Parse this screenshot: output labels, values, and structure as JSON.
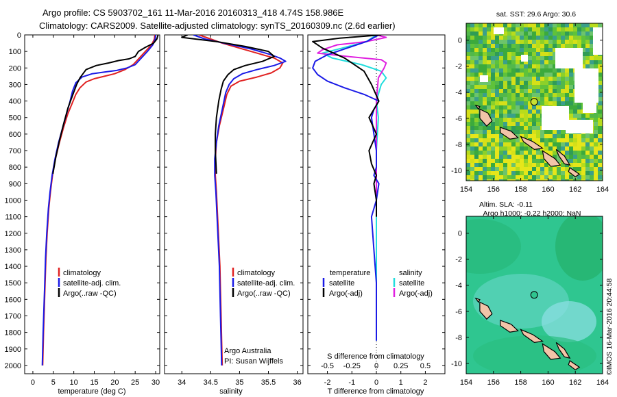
{
  "header": {
    "line1": "Argo profile: CS 5903702_161 11-Mar-2016 20160313_418 4.74S 158.986E",
    "line2": "Climatology: CARS2009. Satellite-adjusted climatology: synTS_20160309.nc (2.6d earlier)"
  },
  "depth_ticks": [
    "0",
    "100",
    "200",
    "300",
    "400",
    "500",
    "600",
    "700",
    "800",
    "900",
    "1000",
    "1100",
    "1200",
    "1300",
    "1400",
    "1500",
    "1600",
    "1700",
    "1800",
    "1900",
    "2000"
  ],
  "panel1": {
    "xlabel": "temperature (deg C)",
    "xticks": [
      "0",
      "5",
      "10",
      "15",
      "20",
      "25",
      "30"
    ],
    "legend": [
      "climatology",
      "satellite-adj. clim.",
      "Argo(..raw -QC)"
    ]
  },
  "panel2": {
    "xlabel": "salinity",
    "xticks": [
      "34",
      "34.5",
      "35",
      "35.5",
      "36"
    ],
    "legend": [
      "climatology",
      "satellite-adj. clim.",
      "Argo(..raw -QC)"
    ],
    "credit1": "Argo Australia",
    "credit2": "PI: Susan Wijffels"
  },
  "panel3": {
    "top_xlabel": "S difference from climatology",
    "top_xticks": [
      "-0.5",
      "-0.25",
      "0",
      "0.25",
      "0.5"
    ],
    "bottom_xlabel": "T difference from climatology",
    "bottom_xticks": [
      "-2",
      "-1",
      "0",
      "1",
      "2"
    ],
    "legend_t_title": "temperature",
    "legend_s_title": "salinity",
    "legend_t": [
      "satellite",
      "Argo(-adj)"
    ],
    "legend_s": [
      "satellite",
      "Argo(-adj)"
    ]
  },
  "map1": {
    "title": "sat. SST: 29.6 Argo: 30.6",
    "yticks": [
      "0",
      "-2",
      "-4",
      "-6",
      "-8",
      "-10"
    ],
    "xticks": [
      "154",
      "156",
      "158",
      "160",
      "162",
      "164"
    ]
  },
  "map2": {
    "title1": "Altim. SLA: -0.11",
    "title2": "Argo h1000: -0.22 h2000: NaN",
    "yticks": [
      "0",
      "-2",
      "-4",
      "-6",
      "-8",
      "-10"
    ],
    "xticks": [
      "154",
      "156",
      "158",
      "160",
      "162",
      "164"
    ]
  },
  "footer": "©IMOS 16-Mar-2016 20:44:58",
  "colors": {
    "climatology": "#e02020",
    "satellite": "#1a1ae6",
    "argo": "#000000",
    "sal_satellite": "#22dddd",
    "sal_argo": "#e020e0"
  },
  "chart_data": [
    {
      "type": "line",
      "title": "",
      "xlabel": "temperature (deg C)",
      "ylabel": "",
      "xlim": [
        -2,
        31
      ],
      "ylim": [
        2050,
        0
      ],
      "series": [
        {
          "name": "climatology",
          "x": [
            29.8,
            29.7,
            29.0,
            27.5,
            26.0,
            24.5,
            22.5,
            20.0,
            17.5,
            15.0,
            13.0,
            11.5,
            10.5,
            9.5,
            8.5,
            7.5,
            6.5,
            5.5,
            4.8,
            4.3,
            3.9,
            3.5,
            3.2,
            3.0,
            2.8,
            2.6,
            2.5,
            2.4
          ],
          "y": [
            0,
            25,
            60,
            100,
            140,
            180,
            210,
            235,
            250,
            265,
            285,
            320,
            360,
            420,
            480,
            560,
            650,
            750,
            850,
            950,
            1050,
            1200,
            1350,
            1500,
            1650,
            1800,
            1900,
            2000
          ]
        },
        {
          "name": "satellite-adj. clim.",
          "x": [
            30.0,
            29.9,
            29.3,
            28.0,
            26.5,
            25.0,
            23.0,
            20.5,
            17.5,
            14.5,
            12.0,
            10.5,
            9.7,
            9.0,
            8.2,
            7.3,
            6.3,
            5.4,
            4.7,
            4.2,
            3.8,
            3.4,
            3.1,
            2.9,
            2.7,
            2.5,
            2.4,
            2.3
          ],
          "y": [
            0,
            25,
            60,
            100,
            140,
            180,
            200,
            215,
            225,
            235,
            255,
            290,
            340,
            410,
            480,
            560,
            650,
            750,
            850,
            950,
            1050,
            1200,
            1350,
            1500,
            1650,
            1800,
            1900,
            2000
          ]
        },
        {
          "name": "Argo(..raw -QC)",
          "x": [
            30.6,
            30.3,
            29.5,
            27.5,
            25.8,
            25.0,
            23.5,
            21.0,
            18.5,
            15.5,
            13.0,
            11.5,
            10.7,
            9.8,
            8.6,
            7.5,
            6.5,
            5.6,
            4.9
          ],
          "y": [
            0,
            25,
            50,
            75,
            100,
            130,
            145,
            155,
            170,
            185,
            210,
            260,
            300,
            360,
            440,
            540,
            640,
            740,
            840
          ]
        }
      ]
    },
    {
      "type": "line",
      "title": "",
      "xlabel": "salinity",
      "ylabel": "",
      "xlim": [
        33.7,
        36.1
      ],
      "ylim": [
        2050,
        0
      ],
      "series": [
        {
          "name": "climatology",
          "x": [
            34.3,
            34.5,
            34.7,
            35.0,
            35.3,
            35.6,
            35.75,
            35.7,
            35.55,
            35.3,
            35.0,
            34.85,
            34.78,
            34.72,
            34.65,
            34.6,
            34.58,
            34.58,
            34.6,
            34.62,
            34.64,
            34.66,
            34.67,
            34.68,
            34.69,
            34.7
          ],
          "y": [
            0,
            25,
            50,
            80,
            110,
            140,
            170,
            200,
            230,
            255,
            280,
            310,
            360,
            450,
            550,
            650,
            750,
            850,
            950,
            1100,
            1250,
            1400,
            1550,
            1700,
            1850,
            2000
          ]
        },
        {
          "name": "satellite-adj. clim.",
          "x": [
            34.2,
            34.4,
            34.8,
            35.2,
            35.5,
            35.7,
            35.8,
            35.6,
            35.3,
            35.05,
            34.9,
            34.82,
            34.76,
            34.7,
            34.64,
            34.6,
            34.57,
            34.57,
            34.59,
            34.61,
            34.63,
            34.65,
            34.66,
            34.67,
            34.68,
            34.69
          ],
          "y": [
            0,
            25,
            55,
            85,
            115,
            140,
            160,
            185,
            210,
            235,
            265,
            300,
            350,
            450,
            550,
            650,
            750,
            850,
            950,
            1100,
            1250,
            1400,
            1550,
            1700,
            1850,
            2000
          ]
        },
        {
          "name": "Argo(..raw -QC)",
          "x": [
            34.1,
            34.0,
            34.6,
            35.1,
            35.5,
            35.6,
            35.4,
            35.1,
            34.9,
            34.8,
            34.72,
            34.68,
            34.64,
            34.6,
            34.58,
            34.58,
            34.6
          ],
          "y": [
            0,
            15,
            40,
            70,
            100,
            130,
            160,
            185,
            210,
            240,
            280,
            330,
            400,
            500,
            600,
            700,
            840
          ]
        }
      ]
    },
    {
      "type": "line",
      "title": "",
      "xlabel": "T difference from climatology",
      "ylabel": "",
      "xlim": [
        -2.8,
        2.8
      ],
      "ylim": [
        2050,
        0
      ],
      "series": [
        {
          "name": "temperature satellite",
          "x": [
            0.1,
            -0.4,
            -1.2,
            -2.0,
            -2.5,
            -2.6,
            -2.4,
            -2.0,
            -1.3,
            -0.5,
            0.1,
            -0.1,
            -0.2,
            -0.1,
            0.0,
            0.0,
            -0.1,
            0.1,
            0.0,
            -0.2,
            -0.1,
            0.0,
            0.0,
            0.0,
            0.0
          ],
          "y": [
            0,
            40,
            80,
            120,
            160,
            200,
            240,
            280,
            320,
            360,
            400,
            450,
            500,
            600,
            700,
            800,
            850,
            900,
            1000,
            1100,
            1300,
            1500,
            1700,
            1800,
            1850
          ]
        },
        {
          "name": "temperature Argo(-adj)",
          "x": [
            0.2,
            -1.5,
            -2.6,
            -2.2,
            -1.3,
            -0.5,
            -0.2,
            0.1,
            -0.3,
            0.0,
            -0.3,
            -0.2,
            0.0,
            -0.1,
            0.0,
            0.0
          ],
          "y": [
            0,
            20,
            40,
            80,
            140,
            220,
            300,
            400,
            500,
            600,
            700,
            780,
            850,
            900,
            1000,
            1100
          ]
        }
      ]
    },
    {
      "type": "line",
      "title": "",
      "xlabel": "S difference from climatology",
      "ylabel": "",
      "xlim": [
        -0.7,
        0.7
      ],
      "ylim": [
        2050,
        0
      ],
      "series": [
        {
          "name": "salinity satellite",
          "x": [
            0.0,
            -0.1,
            -0.35,
            -0.55,
            -0.45,
            -0.15,
            0.05,
            0.1,
            0.05,
            0.0,
            0.02,
            0.0,
            0.0,
            0.0,
            0.0
          ],
          "y": [
            0,
            40,
            80,
            110,
            140,
            180,
            220,
            260,
            300,
            400,
            500,
            700,
            1000,
            1500,
            1850
          ]
        },
        {
          "name": "salinity Argo(-adj)",
          "x": [
            0.0,
            0.1,
            -0.1,
            -0.4,
            -0.55,
            -0.6,
            -0.3,
            0.05,
            0.1,
            0.08,
            0.02,
            0.0,
            0.0,
            0.0,
            0.0
          ],
          "y": [
            0,
            15,
            40,
            60,
            90,
            110,
            130,
            150,
            170,
            200,
            260,
            400,
            600,
            800,
            1100
          ]
        }
      ]
    },
    {
      "type": "heatmap",
      "title": "sat. SST: 29.6 Argo: 30.6",
      "xlim": [
        154,
        164
      ],
      "ylim": [
        -10.8,
        1.3
      ],
      "marker": {
        "lon": 158.986,
        "lat": -4.74
      }
    },
    {
      "type": "heatmap",
      "title": "Altim. SLA: -0.11",
      "xlim": [
        154,
        164
      ],
      "ylim": [
        -10.8,
        1.3
      ],
      "marker": {
        "lon": 158.986,
        "lat": -4.74
      }
    }
  ]
}
